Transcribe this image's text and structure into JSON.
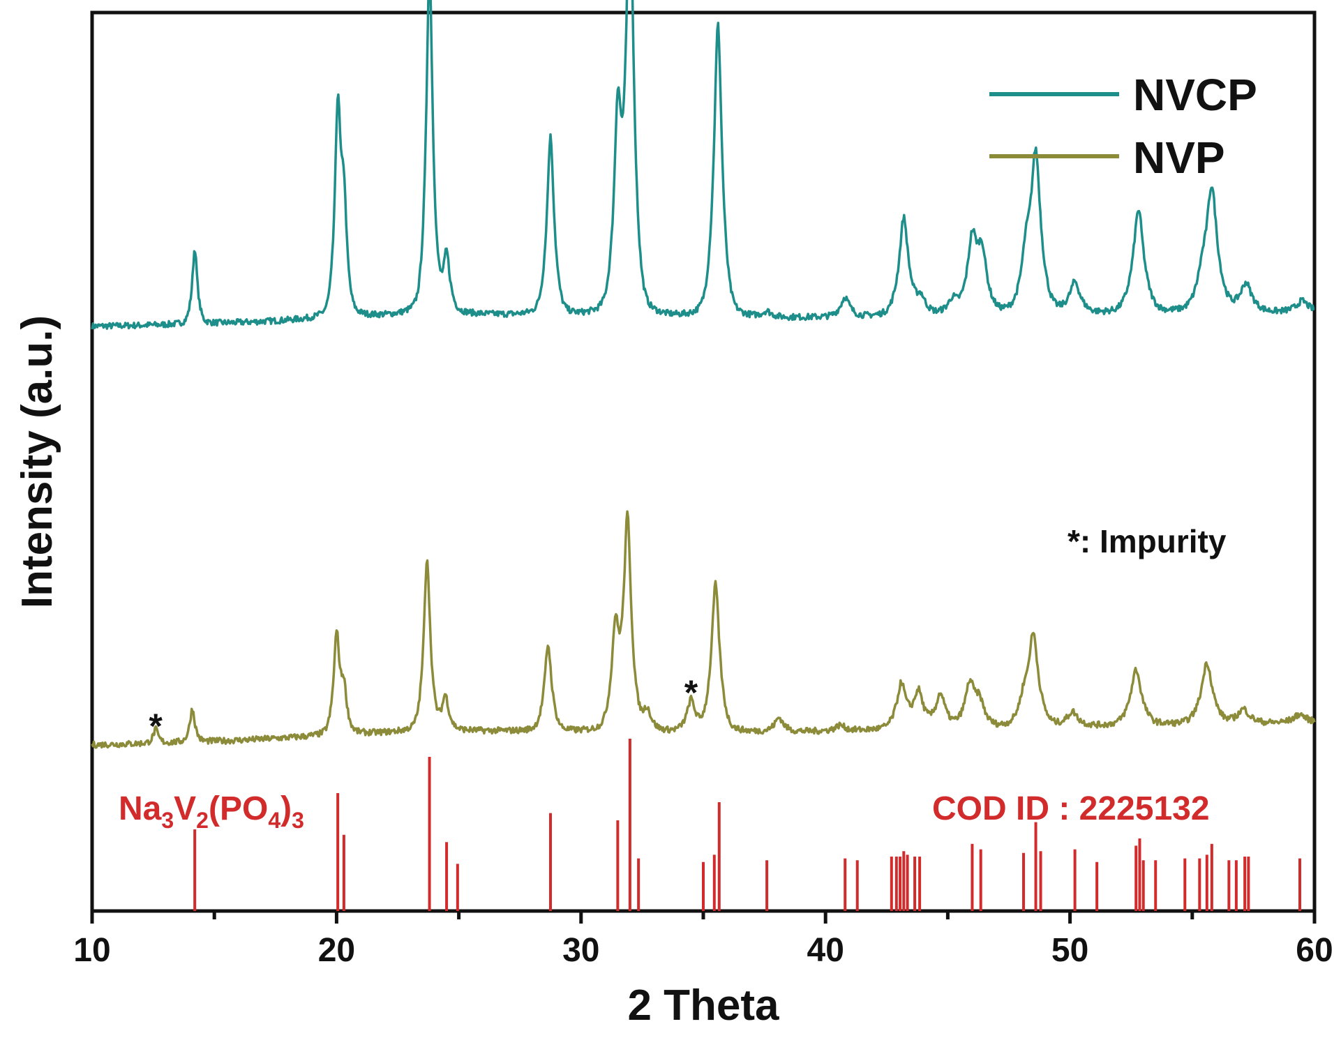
{
  "chart_data": {
    "type": "line",
    "xlabel": "2 Theta",
    "ylabel": "Intensity (a.u.)",
    "xlim": [
      10,
      60
    ],
    "x_ticks": [
      10,
      20,
      30,
      40,
      50,
      60
    ],
    "x_tick_labels": [
      "10",
      "20",
      "30",
      "40",
      "50",
      "60"
    ],
    "legend": {
      "position": "top-right",
      "entries": [
        "NVCP",
        "NVP"
      ]
    },
    "annotation_note": "*: Impurity",
    "impurity_markers": [
      {
        "x": 12.6,
        "label": "*"
      },
      {
        "x": 34.5,
        "label": "*"
      }
    ],
    "series": [
      {
        "name": "NVCP",
        "color": "#1e8e8a",
        "offset": 1.5,
        "baseline_start": 0.0,
        "baseline_end": 0.05,
        "peaks": [
          {
            "x": 14.2,
            "h": 0.27
          },
          {
            "x": 20.05,
            "h": 0.72
          },
          {
            "x": 20.3,
            "h": 0.36
          },
          {
            "x": 23.8,
            "h": 1.25
          },
          {
            "x": 24.5,
            "h": 0.2
          },
          {
            "x": 28.75,
            "h": 0.64
          },
          {
            "x": 31.5,
            "h": 0.68
          },
          {
            "x": 32.0,
            "h": 1.5
          },
          {
            "x": 35.6,
            "h": 1.05
          },
          {
            "x": 37.6,
            "h": 0.02
          },
          {
            "x": 40.8,
            "h": 0.07
          },
          {
            "x": 43.2,
            "h": 0.35
          },
          {
            "x": 43.9,
            "h": 0.06
          },
          {
            "x": 45.2,
            "h": 0.05
          },
          {
            "x": 46.0,
            "h": 0.25
          },
          {
            "x": 46.4,
            "h": 0.2
          },
          {
            "x": 48.2,
            "h": 0.16
          },
          {
            "x": 48.6,
            "h": 0.55
          },
          {
            "x": 50.2,
            "h": 0.11
          },
          {
            "x": 52.8,
            "h": 0.37
          },
          {
            "x": 55.4,
            "h": 0.08
          },
          {
            "x": 55.8,
            "h": 0.43
          },
          {
            "x": 57.2,
            "h": 0.1
          },
          {
            "x": 59.5,
            "h": 0.04
          }
        ]
      },
      {
        "name": "NVP",
        "color": "#8b8b3a",
        "offset": 0.0,
        "baseline_start": 0.0,
        "baseline_end": 0.08,
        "peaks": [
          {
            "x": 12.6,
            "h": 0.05
          },
          {
            "x": 14.1,
            "h": 0.12
          },
          {
            "x": 20.0,
            "h": 0.35
          },
          {
            "x": 20.3,
            "h": 0.15
          },
          {
            "x": 23.7,
            "h": 0.62
          },
          {
            "x": 24.45,
            "h": 0.12
          },
          {
            "x": 28.65,
            "h": 0.31
          },
          {
            "x": 31.4,
            "h": 0.35
          },
          {
            "x": 31.9,
            "h": 0.75
          },
          {
            "x": 32.7,
            "h": 0.07
          },
          {
            "x": 34.5,
            "h": 0.11
          },
          {
            "x": 35.5,
            "h": 0.53
          },
          {
            "x": 38.1,
            "h": 0.05
          },
          {
            "x": 40.6,
            "h": 0.02
          },
          {
            "x": 43.1,
            "h": 0.16
          },
          {
            "x": 43.8,
            "h": 0.13
          },
          {
            "x": 44.7,
            "h": 0.12
          },
          {
            "x": 45.9,
            "h": 0.15
          },
          {
            "x": 46.3,
            "h": 0.08
          },
          {
            "x": 48.1,
            "h": 0.07
          },
          {
            "x": 48.5,
            "h": 0.32
          },
          {
            "x": 50.1,
            "h": 0.05
          },
          {
            "x": 52.7,
            "h": 0.2
          },
          {
            "x": 55.6,
            "h": 0.22
          },
          {
            "x": 57.1,
            "h": 0.05
          },
          {
            "x": 59.4,
            "h": 0.03
          }
        ]
      }
    ],
    "reference": {
      "name": "Na3V2(PO4)3",
      "cod_label": "COD ID : 2225132",
      "color": "#d12b2b",
      "lines": [
        {
          "x": 14.2,
          "i": 0.45
        },
        {
          "x": 20.05,
          "i": 0.65
        },
        {
          "x": 20.3,
          "i": 0.42
        },
        {
          "x": 23.8,
          "i": 0.85
        },
        {
          "x": 24.5,
          "i": 0.38
        },
        {
          "x": 24.95,
          "i": 0.26
        },
        {
          "x": 28.75,
          "i": 0.54
        },
        {
          "x": 31.5,
          "i": 0.5
        },
        {
          "x": 32.0,
          "i": 0.95
        },
        {
          "x": 32.35,
          "i": 0.29
        },
        {
          "x": 35.0,
          "i": 0.27
        },
        {
          "x": 35.45,
          "i": 0.31
        },
        {
          "x": 35.65,
          "i": 0.6
        },
        {
          "x": 37.6,
          "i": 0.28
        },
        {
          "x": 40.8,
          "i": 0.29
        },
        {
          "x": 41.3,
          "i": 0.28
        },
        {
          "x": 42.7,
          "i": 0.3
        },
        {
          "x": 42.9,
          "i": 0.3
        },
        {
          "x": 43.05,
          "i": 0.3
        },
        {
          "x": 43.2,
          "i": 0.33
        },
        {
          "x": 43.35,
          "i": 0.31
        },
        {
          "x": 43.65,
          "i": 0.3
        },
        {
          "x": 43.85,
          "i": 0.3
        },
        {
          "x": 46.0,
          "i": 0.37
        },
        {
          "x": 46.35,
          "i": 0.34
        },
        {
          "x": 48.1,
          "i": 0.32
        },
        {
          "x": 48.6,
          "i": 0.49
        },
        {
          "x": 48.8,
          "i": 0.33
        },
        {
          "x": 50.2,
          "i": 0.34
        },
        {
          "x": 51.1,
          "i": 0.27
        },
        {
          "x": 52.7,
          "i": 0.36
        },
        {
          "x": 52.85,
          "i": 0.4
        },
        {
          "x": 53.0,
          "i": 0.28
        },
        {
          "x": 53.5,
          "i": 0.28
        },
        {
          "x": 54.7,
          "i": 0.29
        },
        {
          "x": 55.3,
          "i": 0.29
        },
        {
          "x": 55.6,
          "i": 0.31
        },
        {
          "x": 55.8,
          "i": 0.37
        },
        {
          "x": 56.5,
          "i": 0.28
        },
        {
          "x": 56.8,
          "i": 0.28
        },
        {
          "x": 57.15,
          "i": 0.3
        },
        {
          "x": 57.3,
          "i": 0.3
        },
        {
          "x": 59.4,
          "i": 0.29
        }
      ]
    }
  }
}
